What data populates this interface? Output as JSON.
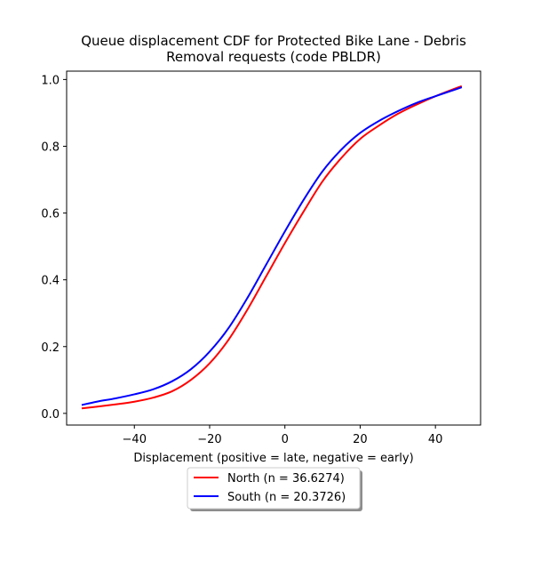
{
  "chart_data": {
    "type": "line",
    "title_lines": [
      "Queue displacement CDF for Protected Bike Lane - Debris",
      "Removal  requests (code PBLDR)"
    ],
    "xlabel": "Displacement (positive = late, negative = early)",
    "ylabel": "",
    "xlim": [
      -58,
      52
    ],
    "ylim": [
      -0.035,
      1.025
    ],
    "xticks": [
      -40,
      -20,
      0,
      20,
      40
    ],
    "xtick_labels": [
      "−40",
      "−20",
      "0",
      "20",
      "40"
    ],
    "yticks": [
      0.0,
      0.2,
      0.4,
      0.6,
      0.8,
      1.0
    ],
    "ytick_labels": [
      "0.0",
      "0.2",
      "0.4",
      "0.6",
      "0.8",
      "1.0"
    ],
    "grid": false,
    "legend_position": "below the x-axis label, centered",
    "series": [
      {
        "name": "North (n = 36.6274)",
        "color": "#ff0000",
        "x": [
          -54,
          -50,
          -45,
          -40,
          -35,
          -30,
          -25,
          -20,
          -15,
          -10,
          -5,
          0,
          5,
          10,
          15,
          20,
          25,
          30,
          35,
          40,
          45,
          47
        ],
        "y": [
          0.015,
          0.02,
          0.027,
          0.035,
          0.047,
          0.066,
          0.1,
          0.15,
          0.22,
          0.31,
          0.41,
          0.51,
          0.605,
          0.695,
          0.765,
          0.822,
          0.862,
          0.897,
          0.925,
          0.95,
          0.972,
          0.98
        ]
      },
      {
        "name": "South (n = 20.3726)",
        "color": "#0000ff",
        "x": [
          -54,
          -50,
          -45,
          -40,
          -35,
          -30,
          -25,
          -20,
          -15,
          -10,
          -5,
          0,
          5,
          10,
          15,
          20,
          25,
          30,
          35,
          40,
          45,
          47
        ],
        "y": [
          0.025,
          0.035,
          0.045,
          0.057,
          0.072,
          0.096,
          0.132,
          0.185,
          0.255,
          0.345,
          0.445,
          0.545,
          0.64,
          0.725,
          0.79,
          0.84,
          0.876,
          0.905,
          0.93,
          0.95,
          0.969,
          0.977
        ]
      }
    ]
  }
}
